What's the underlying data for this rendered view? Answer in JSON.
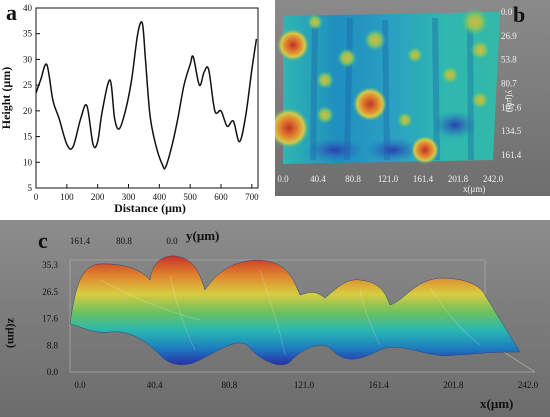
{
  "panel_a": {
    "letter": "a",
    "chart_data": {
      "type": "line",
      "title": "",
      "xlabel": "Distance (μm)",
      "ylabel": "Height (μm)",
      "xlim": [
        0,
        720
      ],
      "ylim": [
        5,
        40
      ],
      "xticks": [
        0,
        100,
        200,
        300,
        400,
        500,
        600,
        700
      ],
      "yticks": [
        5,
        10,
        15,
        20,
        25,
        30,
        35,
        40
      ],
      "series": [
        {
          "x": [
            0,
            15,
            35,
            55,
            75,
            100,
            120,
            145,
            165,
            185,
            200,
            215,
            240,
            255,
            270,
            290,
            310,
            330,
            345,
            355,
            370,
            390,
            410,
            420,
            440,
            460,
            480,
            500,
            510,
            530,
            545,
            560,
            580,
            600,
            620,
            640,
            660,
            680,
            700,
            715
          ],
          "y": [
            23.5,
            26,
            29,
            22,
            18.5,
            13.5,
            13,
            18.5,
            21,
            13.5,
            14,
            20,
            26,
            18.5,
            16.5,
            20,
            26,
            35,
            37,
            30,
            19,
            13,
            9.5,
            9,
            13,
            18.5,
            25,
            29,
            30.5,
            25,
            27.5,
            28,
            20,
            20,
            17,
            18,
            14,
            19,
            28,
            34
          ]
        }
      ]
    }
  },
  "panel_b": {
    "letter": "b",
    "x_ticks": [
      "0.0",
      "40.4",
      "80.8",
      "121.0",
      "161.4",
      "201.8",
      "242.0"
    ],
    "y_ticks": [
      "0.0",
      "26.9",
      "53.8",
      "80.7",
      "107.6",
      "134.5",
      "161.4"
    ],
    "x_label": "x(μm)",
    "y_label": "y(μm)"
  },
  "panel_c": {
    "letter": "c",
    "x_ticks": [
      "0.0",
      "40.4",
      "80.8",
      "121.0",
      "161.4",
      "201.8",
      "242.0"
    ],
    "y_ticks": [
      "161.4",
      "80.8",
      "0.0"
    ],
    "z_ticks": [
      "35.3",
      "26.5",
      "17.6",
      "8.8",
      "0.0"
    ],
    "x_label": "x(μm)",
    "y_label": "y(μm)",
    "z_label": "z(μm)"
  }
}
